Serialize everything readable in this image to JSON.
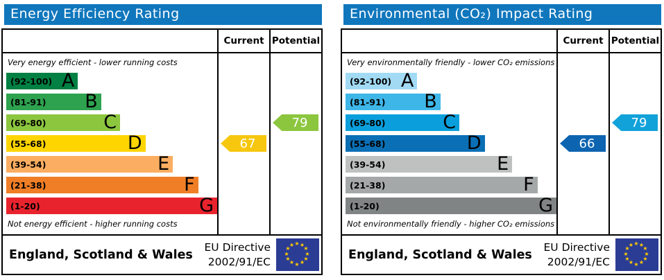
{
  "accent_colors": {
    "title_bar_blue": "#1077bd",
    "eu_flag_blue": "#2b3c94",
    "eu_flag_star_yellow": "#ffcc00"
  },
  "panels": [
    {
      "id": "energy-efficiency",
      "title": "Energy Efficiency Rating",
      "header": {
        "current": "Current",
        "potential": "Potential"
      },
      "top_note": "Very energy efficient - lower running costs",
      "bottom_note": "Not energy efficient - higher running costs",
      "bands": [
        {
          "letter": "A",
          "range": "(92-100)",
          "color": "#008042",
          "width_pct": 34
        },
        {
          "letter": "B",
          "range": "(81-91)",
          "color": "#2ea24f",
          "width_pct": 45
        },
        {
          "letter": "C",
          "range": "(69-80)",
          "color": "#8cc63f",
          "width_pct": 54
        },
        {
          "letter": "D",
          "range": "(55-68)",
          "color": "#ffd500",
          "width_pct": 66
        },
        {
          "letter": "E",
          "range": "(39-54)",
          "color": "#fbae61",
          "width_pct": 79
        },
        {
          "letter": "F",
          "range": "(21-38)",
          "color": "#f07e26",
          "width_pct": 91
        },
        {
          "letter": "G",
          "range": "(1-20)",
          "color": "#e9232d",
          "width_pct": 100
        }
      ],
      "current": {
        "value": "67",
        "band_row": 3,
        "color": "#f6c70e"
      },
      "potential": {
        "value": "79",
        "band_row": 2,
        "color": "#8cc63f"
      },
      "footer": {
        "region": "England, Scotland & Wales",
        "directive_line1": "EU Directive",
        "directive_line2": "2002/91/EC"
      }
    },
    {
      "id": "environmental-impact",
      "title": "Environmental (CO₂) Impact Rating",
      "header": {
        "current": "Current",
        "potential": "Potential"
      },
      "top_note": "Very environmentally friendly - lower CO₂ emissions",
      "bottom_note": "Not environmentally friendly - higher CO₂ emissions",
      "bands": [
        {
          "letter": "A",
          "range": "(92-100)",
          "color": "#a2daf4",
          "width_pct": 34
        },
        {
          "letter": "B",
          "range": "(81-91)",
          "color": "#3eb6e8",
          "width_pct": 45
        },
        {
          "letter": "C",
          "range": "(69-80)",
          "color": "#0a9fdc",
          "width_pct": 54
        },
        {
          "letter": "D",
          "range": "(55-68)",
          "color": "#0a6fb5",
          "width_pct": 66
        },
        {
          "letter": "E",
          "range": "(39-54)",
          "color": "#bfc1c1",
          "width_pct": 79
        },
        {
          "letter": "F",
          "range": "(21-38)",
          "color": "#a5a8a8",
          "width_pct": 91
        },
        {
          "letter": "G",
          "range": "(1-20)",
          "color": "#808484",
          "width_pct": 100
        }
      ],
      "current": {
        "value": "66",
        "band_row": 3,
        "color": "#0d64b0"
      },
      "potential": {
        "value": "79",
        "band_row": 2,
        "color": "#12a2da"
      },
      "footer": {
        "region": "England, Scotland & Wales",
        "directive_line1": "EU Directive",
        "directive_line2": "2002/91/EC"
      }
    }
  ],
  "chart_data": [
    {
      "type": "bar",
      "title": "Energy Efficiency Rating",
      "categories": [
        "A (92-100)",
        "B (81-91)",
        "C (69-80)",
        "D (55-68)",
        "E (39-54)",
        "F (21-38)",
        "G (1-20)"
      ],
      "values": [
        34,
        45,
        54,
        66,
        79,
        91,
        100
      ],
      "band_colors": [
        "#008042",
        "#2ea24f",
        "#8cc63f",
        "#ffd500",
        "#fbae61",
        "#f07e26",
        "#e9232d"
      ],
      "current_rating": 67,
      "current_band": "D",
      "potential_rating": 79,
      "potential_band": "C",
      "top_note": "Very energy efficient - lower running costs",
      "bottom_note": "Not energy efficient - higher running costs",
      "footer": "England, Scotland & Wales — EU Directive 2002/91/EC"
    },
    {
      "type": "bar",
      "title": "Environmental (CO₂) Impact Rating",
      "categories": [
        "A (92-100)",
        "B (81-91)",
        "C (69-80)",
        "D (55-68)",
        "E (39-54)",
        "F (21-38)",
        "G (1-20)"
      ],
      "values": [
        34,
        45,
        54,
        66,
        79,
        91,
        100
      ],
      "band_colors": [
        "#a2daf4",
        "#3eb6e8",
        "#0a9fdc",
        "#0a6fb5",
        "#bfc1c1",
        "#a5a8a8",
        "#808484"
      ],
      "current_rating": 66,
      "current_band": "D",
      "potential_rating": 79,
      "potential_band": "C",
      "top_note": "Very environmentally friendly - lower CO₂ emissions",
      "bottom_note": "Not environmentally friendly - higher CO₂ emissions",
      "footer": "England, Scotland & Wales — EU Directive 2002/91/EC"
    }
  ]
}
